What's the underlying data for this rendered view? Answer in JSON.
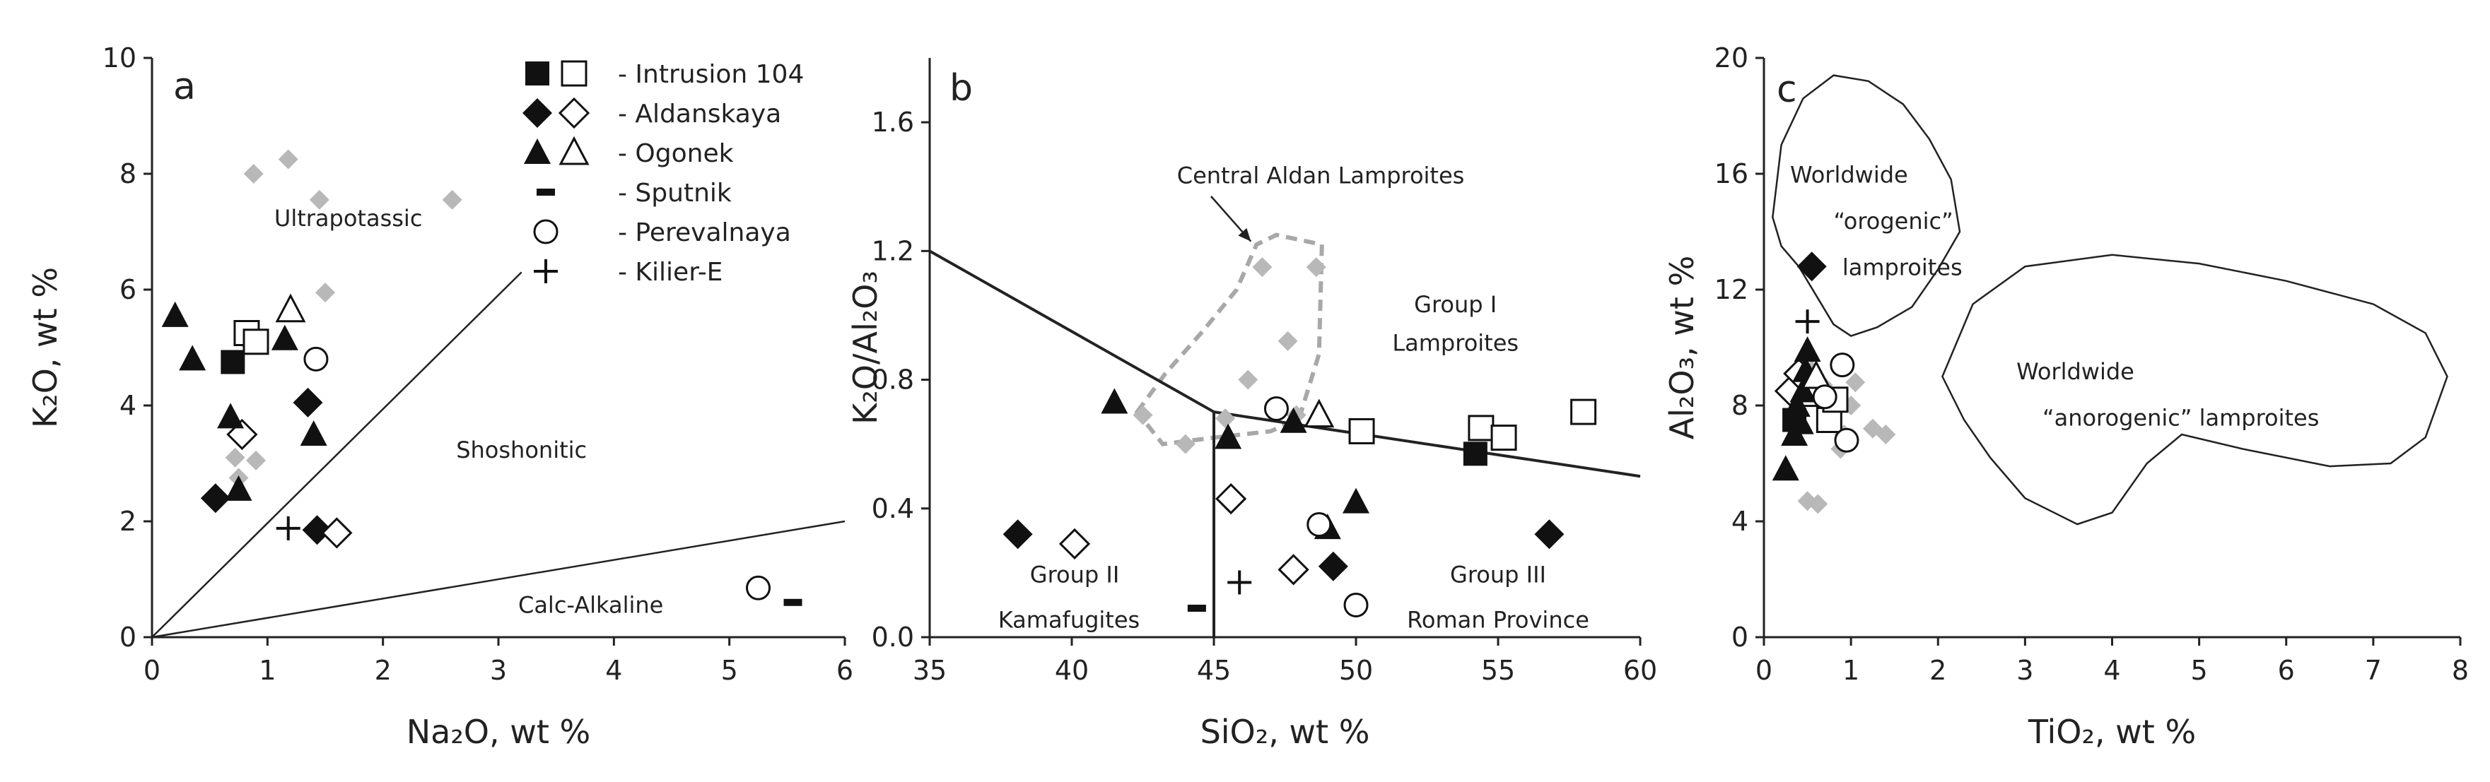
{
  "legend": [
    {
      "symbols": [
        "filled-square",
        "open-square"
      ],
      "label": "- Intrusion 104"
    },
    {
      "symbols": [
        "filled-diamond",
        "open-diamond"
      ],
      "label": "- Aldanskaya"
    },
    {
      "symbols": [
        "filled-triangle",
        "open-triangle"
      ],
      "label": "- Ogonek"
    },
    {
      "symbols": [
        "dash"
      ],
      "label": "- Sputnik"
    },
    {
      "symbols": [
        "open-circle"
      ],
      "label": "- Perevalnaya"
    },
    {
      "symbols": [
        "plus"
      ],
      "label": "- Kilier-E"
    }
  ],
  "colors": {
    "gray_points": "#b8b8b8",
    "dashed_region": "#a8a8a8",
    "lines": "#222222"
  },
  "chart_data": [
    {
      "panel": "a",
      "type": "scatter",
      "xlabel": "Na₂O, wt %",
      "ylabel": "K₂O, wt %",
      "xlim": [
        0,
        6
      ],
      "ylim": [
        0,
        10
      ],
      "xticks": [
        0,
        1,
        2,
        3,
        4,
        5,
        6
      ],
      "yticks": [
        0,
        2,
        4,
        6,
        8,
        10
      ],
      "lines": [
        {
          "x": [
            0,
            3.2
          ],
          "y": [
            0,
            6.3
          ]
        },
        {
          "x": [
            0,
            6
          ],
          "y": [
            0,
            2
          ]
        }
      ],
      "regions": [],
      "field_labels": [
        {
          "text": "Ultrapotassic",
          "x": 1.7,
          "y": 7.1
        },
        {
          "text": "Shoshonitic",
          "x": 3.2,
          "y": 3.1
        },
        {
          "text": "Calc-Alkaline",
          "x": 3.8,
          "y": 0.42
        }
      ],
      "series": [
        {
          "name": "Intrusion 104",
          "marker": "filled-square",
          "x": [
            0.7
          ],
          "y": [
            4.75
          ]
        },
        {
          "name": "Intrusion 104 (open)",
          "marker": "open-square",
          "x": [
            0.82,
            0.9
          ],
          "y": [
            5.25,
            5.1
          ]
        },
        {
          "name": "Aldanskaya",
          "marker": "filled-diamond",
          "x": [
            0.55,
            1.35,
            1.43
          ],
          "y": [
            2.4,
            4.05,
            1.85
          ]
        },
        {
          "name": "Aldanskaya (open)",
          "marker": "open-diamond",
          "x": [
            0.78,
            1.6
          ],
          "y": [
            3.5,
            1.8
          ]
        },
        {
          "name": "Ogonek",
          "marker": "filled-triangle",
          "x": [
            0.2,
            0.35,
            0.68,
            0.75,
            1.15,
            1.4
          ],
          "y": [
            5.55,
            4.8,
            3.8,
            2.55,
            5.15,
            3.5
          ]
        },
        {
          "name": "Ogonek (open)",
          "marker": "open-triangle",
          "x": [
            1.2
          ],
          "y": [
            5.65
          ]
        },
        {
          "name": "Sputnik",
          "marker": "dash",
          "x": [
            5.55
          ],
          "y": [
            0.6
          ]
        },
        {
          "name": "Perevalnaya",
          "marker": "open-circle",
          "x": [
            1.42,
            5.25
          ],
          "y": [
            4.8,
            0.85
          ]
        },
        {
          "name": "Kilier-E",
          "marker": "plus",
          "x": [
            1.18
          ],
          "y": [
            1.88
          ]
        },
        {
          "name": "Central Aldan lamproites",
          "marker": "gray-diamond",
          "x": [
            0.88,
            1.18,
            1.45,
            1.5,
            2.6,
            0.72,
            0.85,
            0.9,
            0.75
          ],
          "y": [
            8.0,
            8.25,
            7.55,
            5.95,
            7.55,
            3.1,
            5.05,
            3.05,
            2.75
          ]
        }
      ]
    },
    {
      "panel": "b",
      "type": "scatter",
      "xlabel": "SiO₂, wt %",
      "ylabel": "K₂O/Al₂O₃",
      "xlim": [
        35,
        60
      ],
      "ylim": [
        0,
        1.8
      ],
      "xticks": [
        35,
        40,
        45,
        50,
        55,
        60
      ],
      "yticks": [
        0.0,
        0.4,
        0.8,
        1.2,
        1.6
      ],
      "tick_labels_y": [
        "0.0",
        "0.4",
        "0.8",
        "1.2",
        "1.6"
      ],
      "lines": [
        {
          "x": [
            35,
            45,
            60
          ],
          "y": [
            1.2,
            0.7,
            0.5
          ]
        },
        {
          "x": [
            45,
            45
          ],
          "y": [
            0,
            0.7
          ]
        }
      ],
      "regions": [
        {
          "name": "Central Aldan Lamproites",
          "style": "dashed",
          "x": [
            42.3,
            43.3,
            44.6,
            45.8,
            46.5,
            47.2,
            48.8,
            48.7,
            48.0,
            47.0,
            45.0,
            43.2,
            42.3
          ],
          "y": [
            0.7,
            0.82,
            0.95,
            1.08,
            1.22,
            1.25,
            1.22,
            0.88,
            0.68,
            0.64,
            0.62,
            0.6,
            0.7
          ]
        }
      ],
      "annotations": [
        {
          "text": "Central Aldan Lamproites",
          "x": 43.7,
          "y": 1.41,
          "arrow_to": [
            46.3,
            1.23
          ]
        }
      ],
      "field_labels": [
        {
          "text": "Group I",
          "x": 53.5,
          "y": 1.01
        },
        {
          "text": "Lamproites",
          "x": 53.5,
          "y": 0.89
        },
        {
          "text": "Group II",
          "x": 40.1,
          "y": 0.17
        },
        {
          "text": "Kamafugites",
          "x": 39.9,
          "y": 0.03
        },
        {
          "text": "Group III",
          "x": 55.0,
          "y": 0.17
        },
        {
          "text": "Roman Province",
          "x": 55.0,
          "y": 0.03
        }
      ],
      "series": [
        {
          "name": "Intrusion 104",
          "marker": "filled-square",
          "x": [
            54.2
          ],
          "y": [
            0.57
          ]
        },
        {
          "name": "Intrusion 104 (open)",
          "marker": "open-square",
          "x": [
            50.2,
            54.4,
            55.2,
            58.0
          ],
          "y": [
            0.64,
            0.65,
            0.62,
            0.7
          ]
        },
        {
          "name": "Aldanskaya",
          "marker": "filled-diamond",
          "x": [
            38.1,
            49.2,
            56.8
          ],
          "y": [
            0.32,
            0.22,
            0.32
          ]
        },
        {
          "name": "Aldanskaya (open)",
          "marker": "open-diamond",
          "x": [
            40.1,
            45.6,
            47.8
          ],
          "y": [
            0.29,
            0.43,
            0.21
          ]
        },
        {
          "name": "Ogonek",
          "marker": "filled-triangle",
          "x": [
            41.5,
            45.5,
            47.8,
            49.0,
            50.0
          ],
          "y": [
            0.73,
            0.62,
            0.67,
            0.34,
            0.42
          ]
        },
        {
          "name": "Ogonek (open)",
          "marker": "open-triangle",
          "x": [
            48.7
          ],
          "y": [
            0.69
          ]
        },
        {
          "name": "Sputnik",
          "marker": "dash",
          "x": [
            44.4
          ],
          "y": [
            0.09
          ]
        },
        {
          "name": "Perevalnaya",
          "marker": "open-circle",
          "x": [
            47.2,
            48.7,
            50.0
          ],
          "y": [
            0.71,
            0.35,
            0.1
          ]
        },
        {
          "name": "Kilier-E",
          "marker": "plus",
          "x": [
            45.9
          ],
          "y": [
            0.17
          ]
        },
        {
          "name": "Central Aldan lamproites",
          "marker": "gray-diamond",
          "x": [
            42.5,
            45.4,
            46.2,
            46.7,
            47.6,
            47.9,
            48.6,
            44.0
          ],
          "y": [
            0.69,
            0.68,
            0.8,
            1.15,
            0.92,
            0.69,
            1.15,
            0.6
          ]
        }
      ]
    },
    {
      "panel": "c",
      "type": "scatter",
      "xlabel": "TiO₂, wt %",
      "ylabel": "Al₂O₃, wt %",
      "xlim": [
        0,
        8
      ],
      "ylim": [
        0,
        20
      ],
      "xticks": [
        0,
        1,
        2,
        3,
        4,
        5,
        6,
        7,
        8
      ],
      "yticks": [
        0,
        4,
        8,
        12,
        16,
        20
      ],
      "lines": [],
      "regions": [
        {
          "name": "Worldwide orogenic lamproites",
          "style": "solid",
          "x": [
            0.1,
            0.2,
            0.45,
            0.8,
            1.2,
            1.6,
            1.9,
            2.15,
            2.25,
            2.0,
            1.7,
            1.3,
            1.0,
            0.8,
            0.6,
            0.4,
            0.2,
            0.1
          ],
          "y": [
            14.5,
            17.0,
            18.6,
            19.4,
            19.2,
            18.4,
            17.2,
            15.8,
            14.0,
            12.7,
            11.4,
            10.7,
            10.4,
            10.8,
            11.8,
            12.8,
            13.5,
            14.5
          ]
        },
        {
          "name": "Worldwide anorogenic lamproites",
          "style": "solid",
          "x": [
            2.05,
            2.4,
            3.0,
            4.0,
            5.0,
            6.0,
            7.0,
            7.6,
            7.85,
            7.6,
            7.2,
            6.5,
            5.5,
            4.8,
            4.4,
            4.0,
            3.6,
            3.0,
            2.6,
            2.3,
            2.05
          ],
          "y": [
            9.0,
            11.5,
            12.8,
            13.2,
            12.9,
            12.3,
            11.5,
            10.5,
            9.0,
            6.9,
            6.0,
            5.9,
            6.5,
            7.0,
            6.0,
            4.3,
            3.9,
            4.8,
            6.2,
            7.5,
            9.0
          ]
        }
      ],
      "field_labels": [
        {
          "text": "Worldwide",
          "x": 0.3,
          "y": 15.7
        },
        {
          "text": "“orogenic”",
          "x": 0.8,
          "y": 14.1
        },
        {
          "text": "lamproites",
          "x": 0.9,
          "y": 12.5
        },
        {
          "text": "Worldwide",
          "x": 2.9,
          "y": 8.9
        },
        {
          "text": "“anorogenic” lamproites",
          "x": 3.2,
          "y": 7.3
        }
      ],
      "series": [
        {
          "name": "Intrusion 104",
          "marker": "filled-square",
          "x": [
            0.35
          ],
          "y": [
            7.5
          ]
        },
        {
          "name": "Intrusion 104 (open)",
          "marker": "open-square",
          "x": [
            0.55,
            0.75,
            0.82
          ],
          "y": [
            8.4,
            7.5,
            8.2
          ]
        },
        {
          "name": "Aldanskaya",
          "marker": "filled-diamond",
          "x": [
            0.55
          ],
          "y": [
            12.8
          ]
        },
        {
          "name": "Aldanskaya (open)",
          "marker": "open-diamond",
          "x": [
            0.3,
            0.4
          ],
          "y": [
            8.5,
            9.1
          ]
        },
        {
          "name": "Ogonek",
          "marker": "filled-triangle",
          "x": [
            0.25,
            0.35,
            0.38,
            0.45,
            0.48,
            0.5,
            0.42
          ],
          "y": [
            5.8,
            7.0,
            8.0,
            8.5,
            9.2,
            9.9,
            7.4
          ]
        },
        {
          "name": "Ogonek (open)",
          "marker": "open-triangle",
          "x": [
            0.6
          ],
          "y": [
            9.0
          ]
        },
        {
          "name": "Perevalnaya",
          "marker": "open-circle",
          "x": [
            0.9,
            0.95,
            0.7
          ],
          "y": [
            9.4,
            6.8,
            8.3
          ]
        },
        {
          "name": "Kilier-E",
          "marker": "plus",
          "x": [
            0.5
          ],
          "y": [
            10.9
          ]
        },
        {
          "name": "Central Aldan lamproites",
          "marker": "gray-diamond",
          "x": [
            0.5,
            0.62,
            0.68,
            0.88,
            1.0,
            1.05,
            1.25,
            1.4,
            0.92,
            0.55,
            0.62
          ],
          "y": [
            4.7,
            4.6,
            8.7,
            6.5,
            8.0,
            8.8,
            7.2,
            7.0,
            7.0,
            9.2,
            8.8
          ]
        }
      ]
    }
  ]
}
